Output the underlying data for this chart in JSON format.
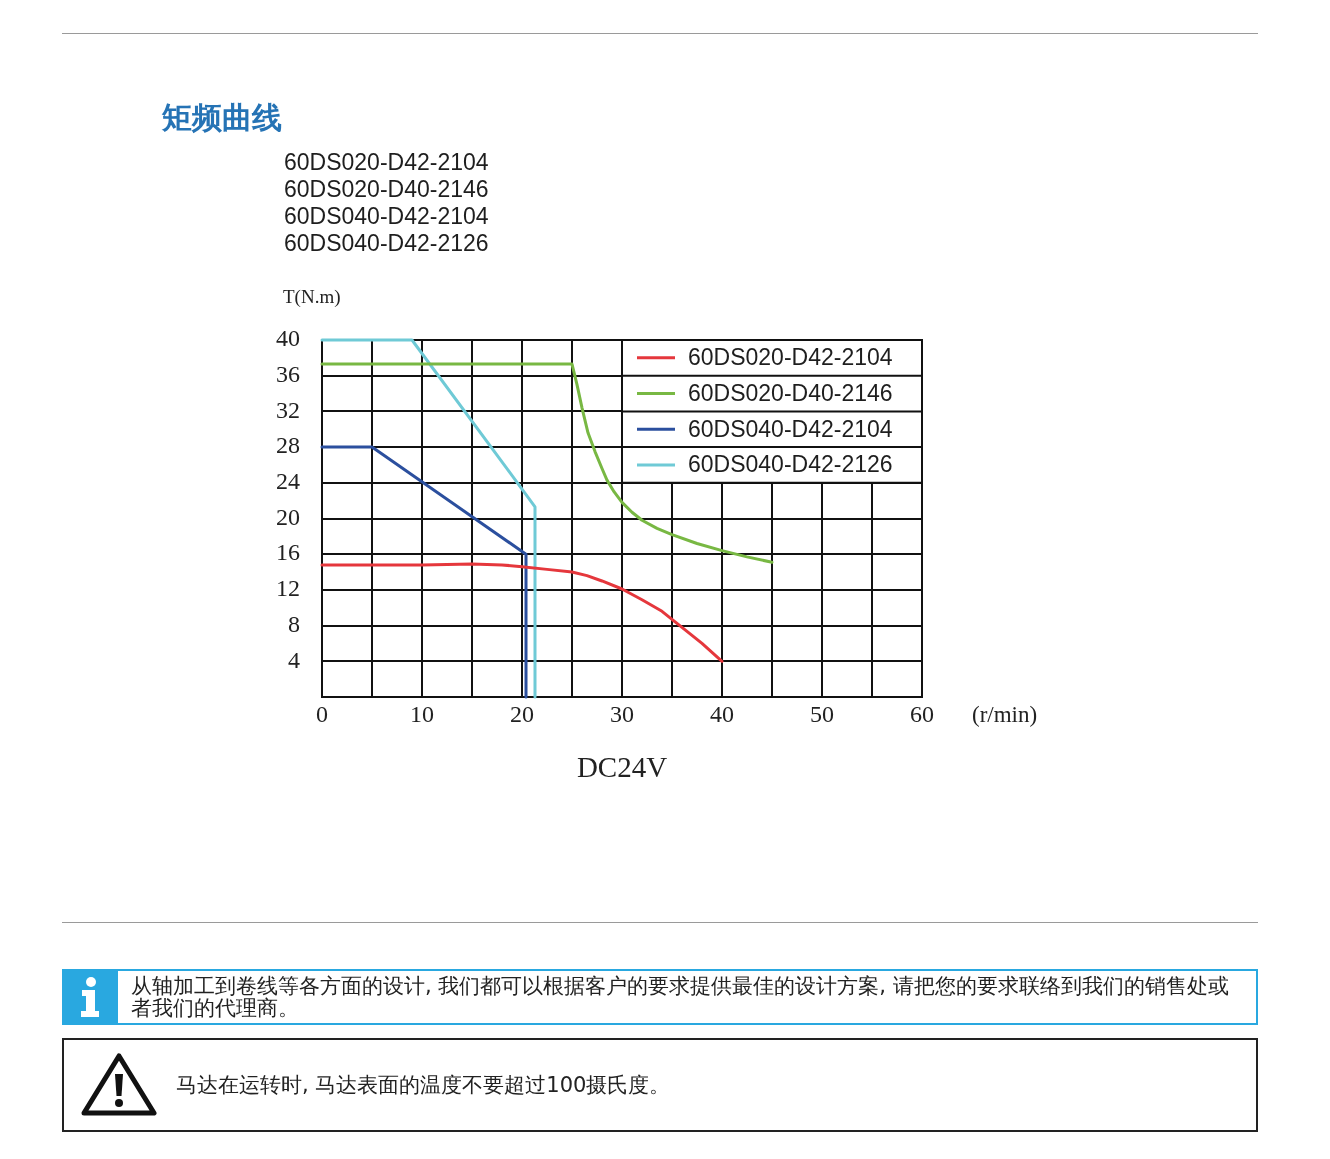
{
  "chart_data": {
    "type": "line",
    "title": "矩频曲线",
    "subtitle": "60DS020-D42-2104\n60DS020-D40-2146\n60DS040-D42-2104\n60DS040-D42-2126",
    "ylabel": "T(N.m)",
    "xlabel": "(r/min)",
    "annotations": [
      "DC24V",
      "从轴加工到卷线等各方面的设计, 我们都可以根据客户的要求提供最佳的设计方案, 请把您的要求联络到我们的销售处或者我们的代理商。",
      "马达在运转时, 马达表面的温度不要超过100摄氏度。"
    ],
    "series": [
      {
        "name": "60DS020-D42-2104",
        "color": "#e5373c",
        "x": [
          0,
          5,
          10,
          15,
          18,
          20,
          22.5,
          25,
          26.5,
          28,
          30,
          32,
          34,
          36,
          38,
          40
        ],
        "values": [
          14.8,
          14.8,
          14.8,
          14.9,
          14.8,
          14.6,
          14.3,
          14,
          13.6,
          13,
          12.1,
          10.9,
          9.6,
          7.8,
          6,
          4
        ]
      },
      {
        "name": "60DS020-D40-2146",
        "color": "#78b843",
        "x": [
          0,
          25,
          25.5,
          26,
          26.6,
          27.3,
          28,
          28.5,
          29.2,
          30,
          31,
          32,
          33.5,
          35,
          37.5,
          40,
          42.5,
          45
        ],
        "values": [
          37.3,
          37.3,
          35,
          32.4,
          29.6,
          27.5,
          25.6,
          24.3,
          23,
          21.8,
          20.7,
          19.8,
          18.9,
          18.2,
          17.2,
          16.4,
          15.7,
          15.1
        ]
      },
      {
        "name": "60DS040-D42-2104",
        "color": "#2b4f9e",
        "x": [
          0,
          5,
          20.4,
          20.4
        ],
        "values": [
          28,
          28,
          16,
          0
        ]
      },
      {
        "name": "60DS040-D42-2126",
        "color": "#6fcad6",
        "x": [
          0,
          9,
          20,
          21.3,
          21.3
        ],
        "values": [
          40,
          40,
          23.3,
          21.3,
          0
        ]
      }
    ],
    "xlim": [
      0,
      60
    ],
    "ylim": [
      0,
      40
    ],
    "xticks": [
      0,
      {
        "value": 5,
        "label": null
      },
      10,
      {
        "value": 15,
        "label": null
      },
      20,
      {
        "value": 25,
        "label": null
      },
      30,
      {
        "value": 35,
        "label": null
      },
      40,
      {
        "value": 45,
        "label": null
      },
      50,
      {
        "value": 55,
        "label": null
      },
      60
    ],
    "yticks": [
      {
        "value": 0,
        "label": null
      },
      4,
      8,
      12,
      16,
      20,
      24,
      28,
      32,
      36,
      40
    ],
    "grid": true,
    "legend": "top right",
    "marker": "none"
  }
}
